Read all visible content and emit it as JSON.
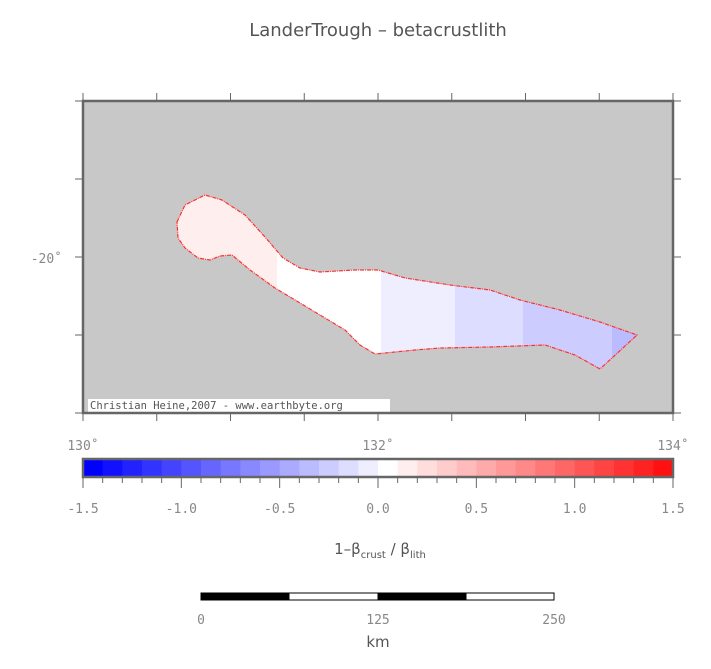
{
  "title": "LanderTrough – betacrustlith",
  "map": {
    "lon_labels": [
      "130˚",
      "132˚",
      "134˚"
    ],
    "lat_labels": [
      "-20˚"
    ],
    "lon_range": [
      130,
      134
    ],
    "background_color": "#c8c8c8",
    "outline_color": "#ff3030",
    "credit": "Christian Heine,2007 - www.earthbyte.org"
  },
  "colorbar": {
    "range": [
      -1.5,
      1.5
    ],
    "step": 0.1,
    "tick_labels": [
      "-1.5",
      "-1.0",
      "-0.5",
      "0.0",
      "0.5",
      "1.0",
      "1.5"
    ],
    "label_main": "1–β",
    "label_sub1": "crust",
    "label_mid": " / β",
    "label_sub2": "lith",
    "low_color": "#0000ff",
    "mid_color": "#ffffff",
    "high_color": "#ff0000"
  },
  "scalebar": {
    "tick_labels": [
      "0",
      "125",
      "250"
    ],
    "unit": "km"
  }
}
